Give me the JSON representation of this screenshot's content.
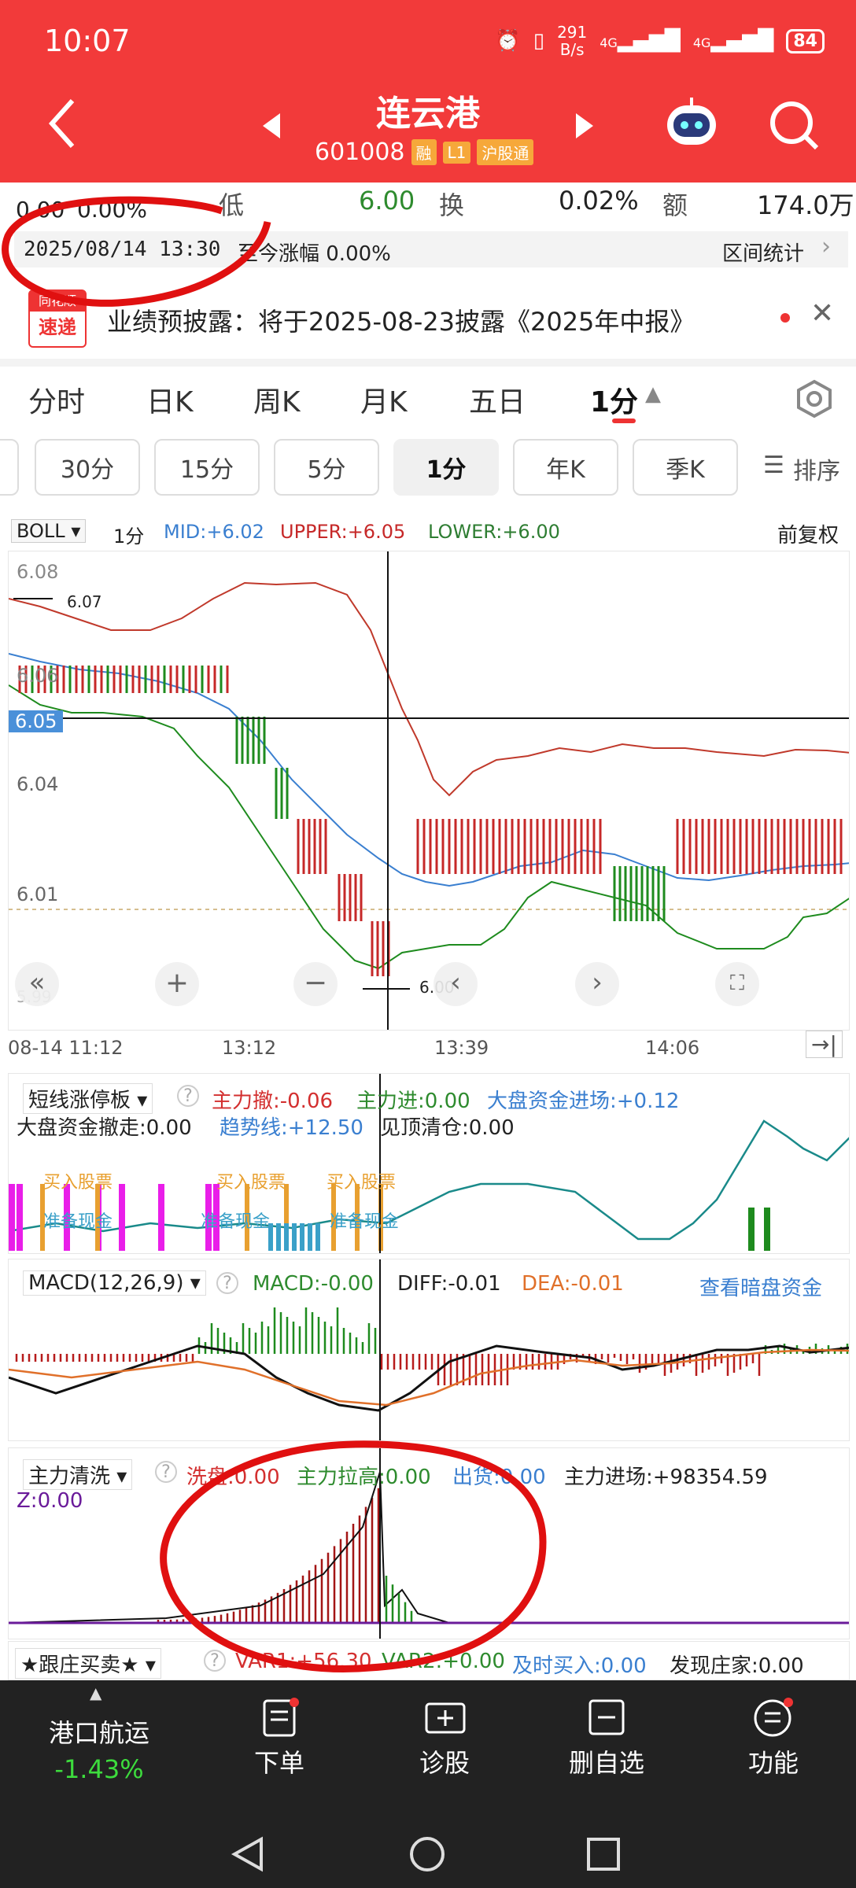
{
  "status": {
    "time": "10:07",
    "net_speed_value": "291",
    "net_speed_unit": "B/s",
    "signal1": "4G",
    "signal2": "4G",
    "battery": "84"
  },
  "header": {
    "stock_name": "连云港",
    "code": "601008",
    "tags": [
      "融",
      "L1",
      "沪股通"
    ]
  },
  "quote": {
    "change": "0.00",
    "change_pct": "0.00%",
    "low_label": "低",
    "low_value": "6.00",
    "turnover_label": "换",
    "turnover_value": "0.02%",
    "amount_label": "额",
    "amount_value": "174.0万"
  },
  "range": {
    "datetime": "2025/08/14 13:30",
    "gain_text": "至今涨幅 0.00%",
    "stats_label": "区间统计"
  },
  "news": {
    "logo_top": "同花顺",
    "logo_bottom": "速递",
    "text": "业绩预披露：将于2025-08-23披露《2025年中报》"
  },
  "period_tabs": [
    "分时",
    "日K",
    "周K",
    "月K",
    "五日",
    "1分"
  ],
  "minute_buttons": [
    "30分",
    "15分",
    "5分",
    "1分",
    "年K",
    "季K"
  ],
  "sort_label": "排序",
  "boll": {
    "name": "BOLL",
    "period": "1分",
    "mid": "MID:+6.02",
    "upper": "UPPER:+6.05",
    "lower": "LOWER:+6.00",
    "adjust": "前复权"
  },
  "price_axis": {
    "p1": "6.08",
    "p2": "6.06",
    "p3": "6.04",
    "p4": "6.01",
    "p5": "5.99",
    "cross": "6.05",
    "high_label": "6.07",
    "low_label": "6.00"
  },
  "time_axis": {
    "t0": "08-14 11:12",
    "t1": "13:12",
    "t2": "13:39",
    "t3": "14:06"
  },
  "indicator1": {
    "name": "短线涨停板",
    "a": "主力撤:-0.06",
    "b": "主力进:0.00",
    "c": "大盘资金进场:+0.12",
    "d": "大盘资金撤走:0.00",
    "e": "趋势线:+12.50",
    "f": "见顶清仓:0.00",
    "buy": "买入股票",
    "ready": "准备现金"
  },
  "macd": {
    "name": "MACD(12,26,9)",
    "macd": "MACD:-0.00",
    "diff": "DIFF:-0.01",
    "dea": "DEA:-0.01",
    "link": "查看暗盘资金"
  },
  "indicator3": {
    "name": "主力清洗",
    "a": "洗盘:0.00",
    "b": "主力拉高:0.00",
    "c": "出货:0.00",
    "d": "主力进场:+98354.59",
    "z": "Z:0.00"
  },
  "indicator4": {
    "name": "★跟庄买卖★",
    "a": "VAR1:+56.30",
    "b": "VAR2:+0.00",
    "c": "及时买入:0.00",
    "d": "发现庄家:0.00"
  },
  "bottom": {
    "index_name": "港口航运",
    "index_change": "-1.43%",
    "order": "下单",
    "diagnose": "诊股",
    "delete": "删自选",
    "func": "功能"
  },
  "colors": {
    "header_red": "#f23a3a",
    "up": "#d32f2f",
    "down": "#2e8b2e",
    "mid_line": "#3a7fd0"
  }
}
